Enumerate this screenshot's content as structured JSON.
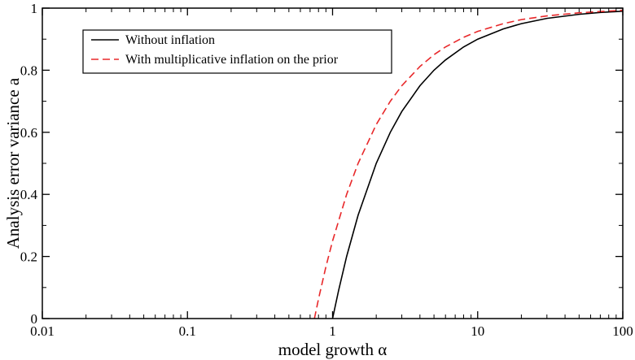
{
  "chart_data": {
    "type": "line",
    "xscale": "log",
    "xlim": [
      0.01,
      100
    ],
    "ylim": [
      0,
      1
    ],
    "xticks": [
      0.01,
      0.1,
      1,
      10,
      100
    ],
    "xtick_labels": [
      "0.01",
      "0.1",
      "1",
      "10",
      "100"
    ],
    "yticks": [
      0,
      0.2,
      0.4,
      0.6,
      0.8,
      1
    ],
    "ytick_labels": [
      "0",
      "0.2",
      "0.4",
      "0.6",
      "0.8",
      "1"
    ],
    "xlabel": "model growth α",
    "ylabel": "Analysis error variance a",
    "grid": false,
    "legend_position": "top-left",
    "series": [
      {
        "name": "Without inflation",
        "color": "#000000",
        "style": "solid",
        "x": [
          1,
          1.1,
          1.25,
          1.5,
          2,
          2.5,
          3,
          4,
          5,
          6,
          8,
          10,
          15,
          20,
          30,
          50,
          70,
          100
        ],
        "y": [
          0,
          0.09,
          0.2,
          0.333,
          0.5,
          0.6,
          0.667,
          0.75,
          0.8,
          0.833,
          0.875,
          0.9,
          0.933,
          0.95,
          0.967,
          0.98,
          0.986,
          0.99
        ]
      },
      {
        "name": "With multiplicative inflation on the prior",
        "color": "#e8282a",
        "style": "dashed",
        "x": [
          0.75,
          0.8,
          0.9,
          1,
          1.25,
          1.5,
          2,
          2.5,
          3,
          4,
          5,
          6,
          8,
          10,
          15,
          20,
          30,
          50,
          70,
          100
        ],
        "y": [
          0,
          0.063,
          0.167,
          0.25,
          0.4,
          0.5,
          0.625,
          0.7,
          0.75,
          0.812,
          0.85,
          0.875,
          0.906,
          0.925,
          0.95,
          0.963,
          0.975,
          0.985,
          0.989,
          0.993
        ]
      }
    ]
  }
}
